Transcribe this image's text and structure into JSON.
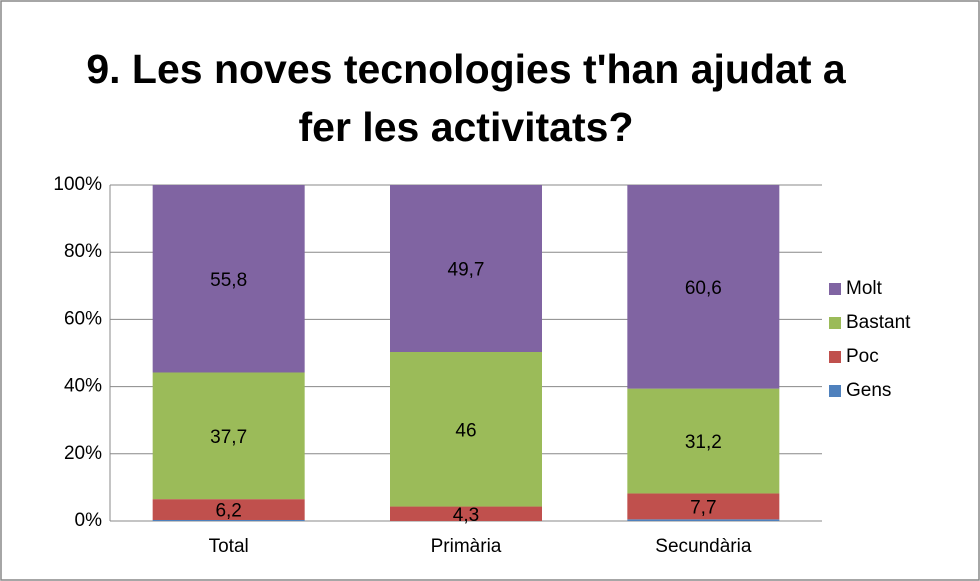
{
  "chart_data": {
    "type": "stacked_bar",
    "title": [
      "9. Les noves tecnologies t'han ajudat a",
      "fer les activitats?"
    ],
    "categories": [
      "Total",
      "Primària",
      "Secundària"
    ],
    "series": [
      {
        "name": "Gens",
        "color": "#4f81bd",
        "values": [
          0.3,
          0,
          0.5
        ]
      },
      {
        "name": "Poc",
        "color": "#c0504d",
        "values": [
          6.2,
          4.3,
          7.7
        ],
        "value_labels": [
          "6,2",
          "4,3",
          "7,7"
        ]
      },
      {
        "name": "Bastant",
        "color": "#9bbb59",
        "values": [
          37.7,
          46,
          31.2
        ],
        "value_labels": [
          "37,7",
          "46",
          "31,2"
        ]
      },
      {
        "name": "Molt",
        "color": "#8064a2",
        "values": [
          55.8,
          49.7,
          60.6
        ],
        "value_labels": [
          "55,8",
          "49,7",
          "60,6"
        ]
      }
    ],
    "ylim": [
      0,
      100
    ],
    "yticks": [
      {
        "value": 0,
        "label": "0%"
      },
      {
        "value": 20,
        "label": "20%"
      },
      {
        "value": 40,
        "label": "40%"
      },
      {
        "value": 60,
        "label": "60%"
      },
      {
        "value": 80,
        "label": "80%"
      },
      {
        "value": 100,
        "label": "100%"
      }
    ],
    "grid": true,
    "legend": "right"
  }
}
